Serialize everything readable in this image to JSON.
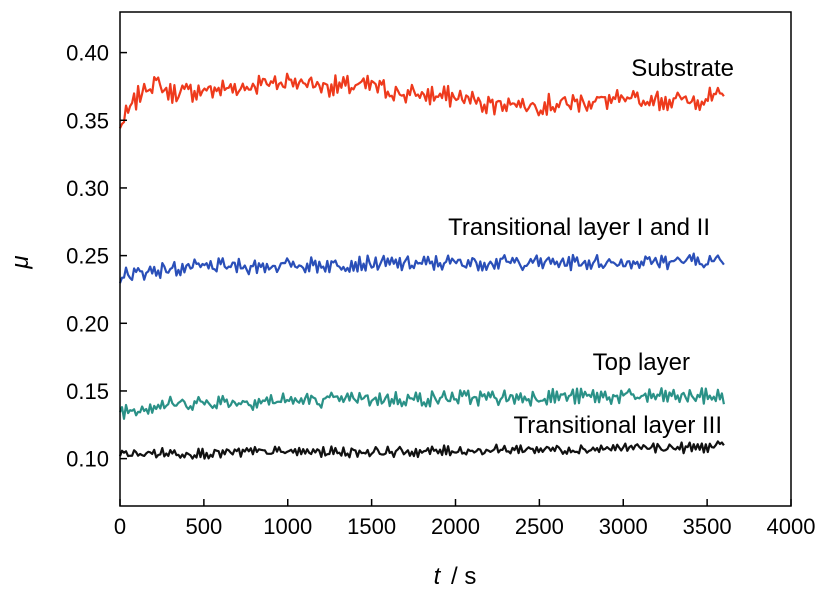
{
  "chart_data": {
    "type": "line",
    "title": "",
    "xlabel_var": "t",
    "xlabel_unit": "/ s",
    "ylabel": "μ",
    "xlim": [
      0,
      4000
    ],
    "ylim": [
      0.065,
      0.43
    ],
    "xticks": [
      0,
      500,
      1000,
      1500,
      2000,
      2500,
      3000,
      3500,
      4000
    ],
    "xtick_labels": [
      "0",
      "500",
      "1000",
      "1500",
      "2000",
      "2500",
      "3000",
      "3500",
      "4000"
    ],
    "yticks": [
      0.1,
      0.15,
      0.2,
      0.25,
      0.3,
      0.35,
      0.4
    ],
    "ytick_labels": [
      "0.10",
      "0.15",
      "0.20",
      "0.25",
      "0.30",
      "0.35",
      "0.40"
    ],
    "grid": false,
    "legend": "inline labels",
    "series": [
      {
        "name": "Substrate",
        "color": "#ee3a1c",
        "x": [
          0,
          50,
          100,
          150,
          200,
          300,
          400,
          500,
          600,
          700,
          800,
          900,
          1000,
          1100,
          1200,
          1300,
          1400,
          1500,
          1600,
          1700,
          1800,
          1900,
          2000,
          2100,
          2200,
          2300,
          2400,
          2500,
          2600,
          2700,
          2800,
          2900,
          3000,
          3100,
          3200,
          3300,
          3400,
          3500,
          3600
        ],
        "y": [
          0.345,
          0.356,
          0.366,
          0.374,
          0.378,
          0.37,
          0.371,
          0.372,
          0.373,
          0.374,
          0.376,
          0.378,
          0.379,
          0.378,
          0.376,
          0.375,
          0.375,
          0.376,
          0.372,
          0.369,
          0.369,
          0.368,
          0.367,
          0.365,
          0.362,
          0.363,
          0.362,
          0.361,
          0.362,
          0.363,
          0.364,
          0.365,
          0.364,
          0.364,
          0.365,
          0.365,
          0.365,
          0.366,
          0.367
        ],
        "noise": 0.006
      },
      {
        "name": "Transitional layer I and II",
        "color": "#2a4fb8",
        "x": [
          0,
          100,
          200,
          400,
          600,
          800,
          1000,
          1200,
          1400,
          1600,
          1800,
          2000,
          2200,
          2400,
          2600,
          2800,
          3000,
          3200,
          3400,
          3600
        ],
        "y": [
          0.235,
          0.237,
          0.239,
          0.241,
          0.242,
          0.242,
          0.243,
          0.243,
          0.244,
          0.244,
          0.244,
          0.245,
          0.245,
          0.245,
          0.245,
          0.245,
          0.245,
          0.246,
          0.246,
          0.246
        ],
        "noise": 0.0045
      },
      {
        "name": "Top layer",
        "color": "#2a9187",
        "x": [
          0,
          100,
          200,
          400,
          600,
          800,
          1000,
          1200,
          1400,
          1600,
          1800,
          2000,
          2200,
          2400,
          2600,
          2800,
          3000,
          3200,
          3400,
          3600
        ],
        "y": [
          0.135,
          0.137,
          0.139,
          0.141,
          0.142,
          0.142,
          0.143,
          0.143,
          0.144,
          0.144,
          0.144,
          0.145,
          0.145,
          0.145,
          0.146,
          0.146,
          0.146,
          0.146,
          0.146,
          0.146
        ],
        "noise": 0.0045
      },
      {
        "name": "Transitional layer III",
        "color": "#111111",
        "x": [
          0,
          200,
          400,
          600,
          800,
          1000,
          1200,
          1400,
          1600,
          1800,
          2000,
          2200,
          2400,
          2600,
          2800,
          3000,
          3200,
          3400,
          3600
        ],
        "y": [
          0.103,
          0.104,
          0.104,
          0.104,
          0.105,
          0.105,
          0.105,
          0.105,
          0.105,
          0.105,
          0.106,
          0.106,
          0.107,
          0.107,
          0.107,
          0.108,
          0.108,
          0.108,
          0.109
        ],
        "noise": 0.003
      }
    ]
  }
}
